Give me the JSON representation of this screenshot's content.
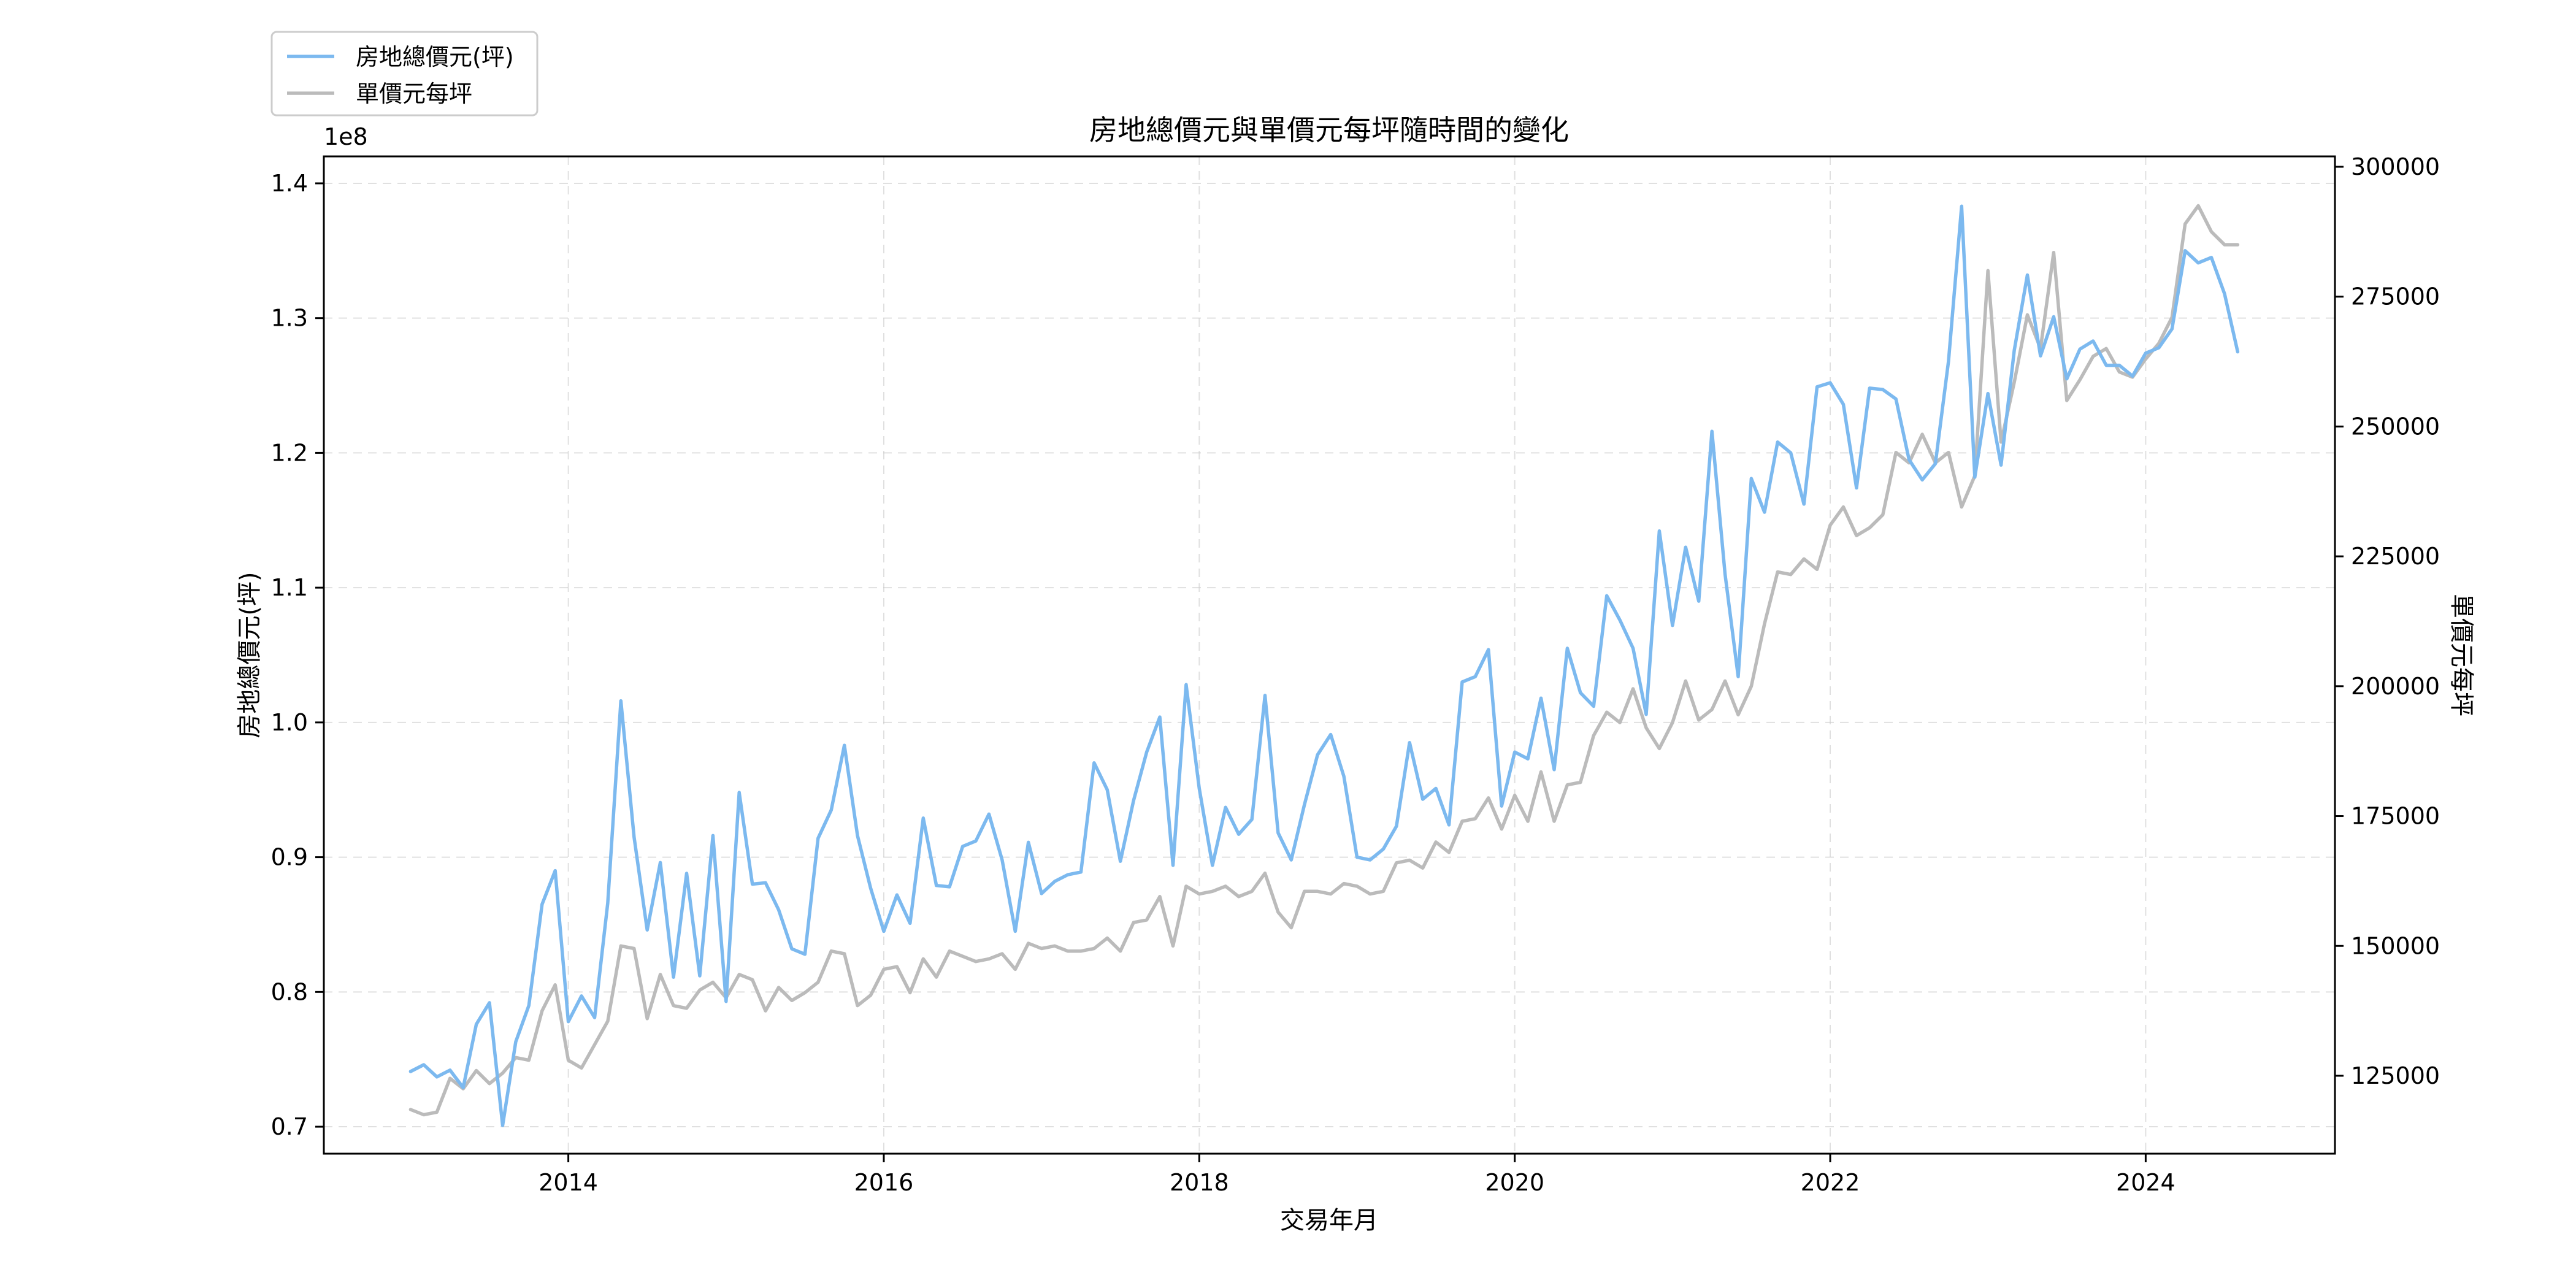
{
  "chart_data": {
    "type": "line",
    "title": "房地總價元與單價元每坪隨時間的變化",
    "xlabel": "交易年月",
    "ylabel_left": "房地總價元(坪)",
    "ylabel_right": "單價元每坪",
    "left_axis_offset_text": "1e8",
    "x_ticks": [
      "2014",
      "2016",
      "2018",
      "2020",
      "2022",
      "2024"
    ],
    "x_tick_values": [
      2014,
      2016,
      2018,
      2020,
      2022,
      2024
    ],
    "xlim": [
      2012.45,
      2025.2
    ],
    "left_ticks": [
      "0.7",
      "0.8",
      "0.9",
      "1.0",
      "1.1",
      "1.2",
      "1.3",
      "1.4"
    ],
    "left_tick_values": [
      0.7,
      0.8,
      0.9,
      1.0,
      1.1,
      1.2,
      1.3,
      1.4
    ],
    "ylim_left": [
      0.68,
      1.42
    ],
    "right_ticks": [
      "125000",
      "150000",
      "175000",
      "200000",
      "225000",
      "250000",
      "275000",
      "300000"
    ],
    "right_tick_values": [
      125000,
      150000,
      175000,
      200000,
      225000,
      250000,
      275000,
      300000
    ],
    "ylim_right": [
      110000,
      302000
    ],
    "grid": true,
    "legend_position": "top-left, outside above the plot",
    "x_start": "2013-01",
    "x_step": "1 month",
    "series": [
      {
        "name": "房地總價元(坪)",
        "axis": "left",
        "color": "#7cb9ef",
        "values": [
          0.741,
          0.746,
          0.737,
          0.742,
          0.729,
          0.776,
          0.792,
          0.701,
          0.763,
          0.79,
          0.865,
          0.89,
          0.778,
          0.797,
          0.781,
          0.866,
          1.016,
          0.915,
          0.846,
          0.896,
          0.811,
          0.888,
          0.812,
          0.916,
          0.793,
          0.948,
          0.88,
          0.881,
          0.861,
          0.832,
          0.828,
          0.914,
          0.935,
          0.983,
          0.916,
          0.877,
          0.845,
          0.872,
          0.851,
          0.929,
          0.879,
          0.878,
          0.908,
          0.912,
          0.932,
          0.898,
          0.845,
          0.911,
          0.873,
          0.882,
          0.887,
          0.889,
          0.97,
          0.95,
          0.897,
          0.942,
          0.978,
          1.004,
          0.894,
          1.028,
          0.951,
          0.894,
          0.937,
          0.917,
          0.928,
          1.02,
          0.918,
          0.898,
          0.939,
          0.976,
          0.991,
          0.96,
          0.9,
          0.898,
          0.906,
          0.923,
          0.985,
          0.943,
          0.951,
          0.924,
          1.03,
          1.034,
          1.054,
          0.938,
          0.978,
          0.973,
          1.018,
          0.965,
          1.055,
          1.022,
          1.012,
          1.094,
          1.076,
          1.055,
          1.006,
          1.142,
          1.072,
          1.13,
          1.09,
          1.216,
          1.11,
          1.034,
          1.181,
          1.156,
          1.208,
          1.2,
          1.162,
          1.249,
          1.252,
          1.236,
          1.174,
          1.248,
          1.247,
          1.24,
          1.195,
          1.18,
          1.192,
          1.268,
          1.383,
          1.182,
          1.244,
          1.191,
          1.276,
          1.332,
          1.272,
          1.301,
          1.255,
          1.277,
          1.283,
          1.265,
          1.265,
          1.257,
          1.274,
          1.278,
          1.292,
          1.35,
          1.341,
          1.345,
          1.318,
          1.275
        ]
      },
      {
        "name": "單價元每坪",
        "axis": "right",
        "color": "#bbbbbb",
        "values": [
          118500,
          117500,
          118000,
          124500,
          122500,
          126000,
          123500,
          125500,
          128500,
          128000,
          137500,
          142500,
          128000,
          126500,
          131000,
          135500,
          150000,
          149500,
          136000,
          144500,
          138500,
          138000,
          141500,
          143000,
          140000,
          144500,
          143500,
          137500,
          142000,
          139500,
          141000,
          143000,
          149000,
          148500,
          138500,
          140500,
          145500,
          146000,
          141000,
          147500,
          144000,
          149000,
          148000,
          147000,
          147500,
          148500,
          145500,
          150500,
          149500,
          150000,
          149000,
          149000,
          149500,
          151500,
          149000,
          154500,
          155000,
          159500,
          150000,
          161500,
          160000,
          160500,
          161500,
          159500,
          160500,
          164000,
          156500,
          153500,
          160500,
          160500,
          160000,
          162000,
          161500,
          160000,
          160500,
          166000,
          166500,
          165000,
          170000,
          168000,
          174000,
          174500,
          178500,
          172500,
          179000,
          174000,
          183500,
          174000,
          181000,
          181500,
          190500,
          195000,
          193000,
          199500,
          192000,
          188000,
          193000,
          201000,
          193500,
          195500,
          201000,
          194500,
          200000,
          212000,
          222000,
          221500,
          224500,
          222500,
          231000,
          234500,
          229000,
          230500,
          233000,
          245000,
          243000,
          248500,
          243000,
          245000,
          234500,
          240500,
          280000,
          247000,
          258500,
          271500,
          265000,
          283500,
          255000,
          259000,
          263500,
          265000,
          260500,
          259500,
          263000,
          266000,
          271000,
          289000,
          292500,
          287500,
          285000,
          285000
        ]
      }
    ]
  }
}
